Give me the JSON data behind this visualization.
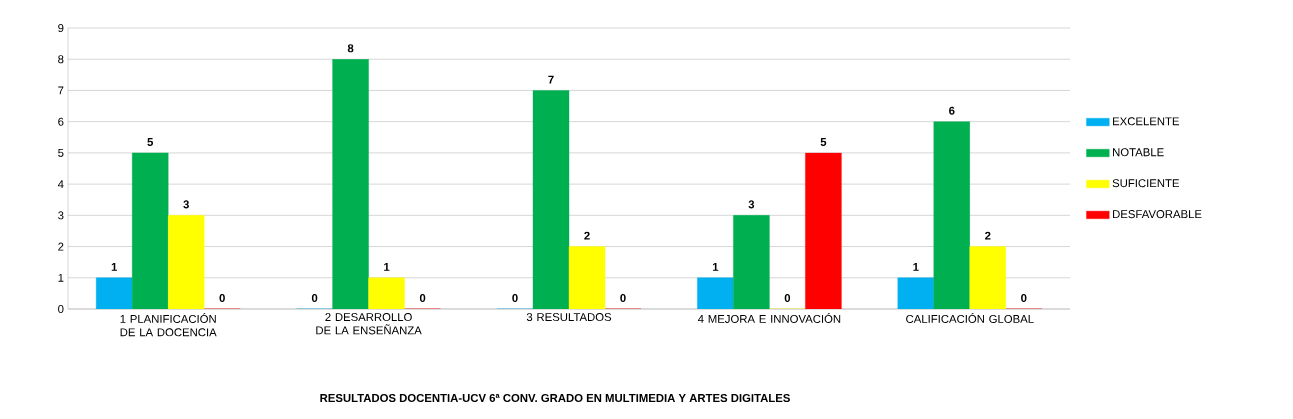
{
  "chart_data": {
    "type": "bar",
    "title": "RESULTADOS DOCENTIA-UCV 6ª CONV. GRADO EN MULTIMEDIA Y ARTES DIGITALES",
    "categories": [
      "1 PLANIFICACIÓN DE LA DOCENCIA",
      "2 DESARROLLO DE LA ENSEÑANZA",
      "3 RESULTADOS",
      "4 MEJORA E INNOVACIÓN",
      "CALIFICACIÓN GLOBAL"
    ],
    "series": [
      {
        "name": "EXCELENTE",
        "color": "#00b0f0",
        "values": [
          1,
          0,
          0,
          1,
          1
        ]
      },
      {
        "name": "NOTABLE",
        "color": "#00b050",
        "values": [
          5,
          8,
          7,
          3,
          6
        ]
      },
      {
        "name": "SUFICIENTE",
        "color": "#ffff00",
        "values": [
          3,
          1,
          2,
          0,
          2
        ]
      },
      {
        "name": "DESFAVORABLE",
        "color": "#ff0000",
        "values": [
          0,
          0,
          0,
          5,
          0
        ]
      }
    ],
    "ylim": [
      0,
      9
    ],
    "yticks": [
      0,
      1,
      2,
      3,
      4,
      5,
      6,
      7,
      8,
      9
    ],
    "grid": "y",
    "legend": "right",
    "data_labels": true
  }
}
